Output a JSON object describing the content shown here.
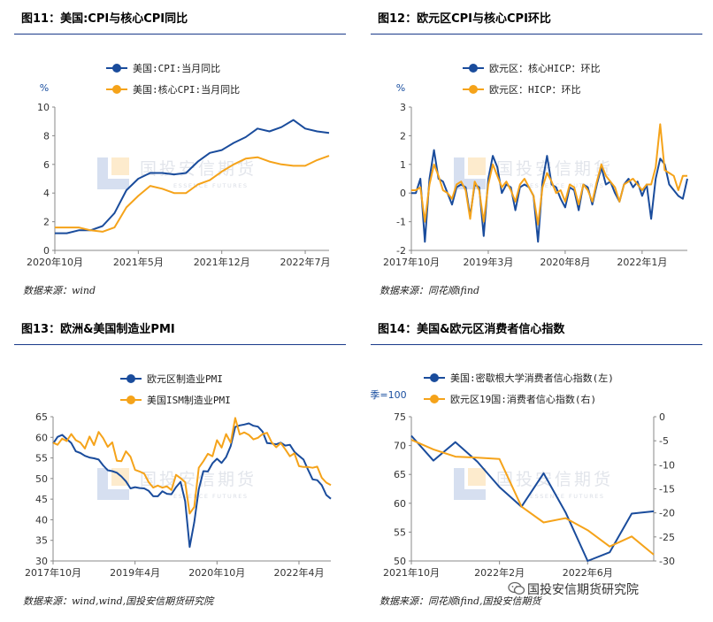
{
  "watermark": {
    "cn": "国投安信期货",
    "en": "ESSENCE FUTURES"
  },
  "wechat_text": "国投安信期货研究院",
  "colors": {
    "blue": "#1a4c9c",
    "orange": "#f5a31a",
    "rule": "#1a3a8a"
  },
  "chart_data": [
    {
      "id": "fig11",
      "type": "line",
      "title": "图11：美国:CPI与核心CPI同比",
      "source": "数据来源：wind",
      "unit": "%",
      "ylim": [
        0,
        10
      ],
      "yticks": [
        "0",
        "2",
        "4",
        "6",
        "8",
        "10"
      ],
      "xticks": [
        "2020年10月",
        "2021年5月",
        "2021年12月",
        "2022年7月"
      ],
      "xtick_index": [
        0,
        7,
        14,
        21
      ],
      "x_count": 24,
      "series": [
        {
          "name": "美国:CPI:当月同比",
          "color": "#1a4c9c",
          "values": [
            1.2,
            1.2,
            1.4,
            1.4,
            1.7,
            2.6,
            4.2,
            5.0,
            5.4,
            5.4,
            5.3,
            5.4,
            6.2,
            6.8,
            7.0,
            7.5,
            7.9,
            8.5,
            8.3,
            8.6,
            9.1,
            8.5,
            8.3,
            8.2
          ]
        },
        {
          "name": "美国:核心CPI:当月同比",
          "color": "#f5a31a",
          "values": [
            1.6,
            1.6,
            1.6,
            1.4,
            1.3,
            1.6,
            3.0,
            3.8,
            4.5,
            4.3,
            4.0,
            4.0,
            4.6,
            4.9,
            5.5,
            6.0,
            6.4,
            6.5,
            6.2,
            6.0,
            5.9,
            5.9,
            6.3,
            6.6
          ]
        }
      ]
    },
    {
      "id": "fig12",
      "type": "line",
      "title": "图12：欧元区CPI与核心CPI环比",
      "source": "数据来源：同花顺ifind",
      "unit": "%",
      "ylim": [
        -2,
        3
      ],
      "yticks": [
        "-2",
        "-1",
        "0",
        "1",
        "2",
        "3"
      ],
      "xticks": [
        "2017年10月",
        "2019年3月",
        "2020年8月",
        "2022年1月"
      ],
      "xtick_index": [
        0,
        17,
        34,
        51
      ],
      "x_count": 62,
      "series": [
        {
          "name": "欧元区：核心HICP：环比",
          "color": "#1a4c9c",
          "values": [
            0.0,
            0.0,
            0.5,
            -1.7,
            0.5,
            1.5,
            0.5,
            0.4,
            0.0,
            -0.4,
            0.2,
            0.3,
            0.2,
            -0.8,
            0.3,
            0.2,
            -1.5,
            0.5,
            1.3,
            0.9,
            0.0,
            0.3,
            0.2,
            -0.6,
            0.2,
            0.3,
            0.2,
            -0.1,
            -1.7,
            0.4,
            1.3,
            0.3,
            0.2,
            -0.2,
            -0.5,
            0.2,
            0.1,
            -0.6,
            0.3,
            0.2,
            -0.4,
            0.3,
            0.9,
            0.3,
            0.4,
            0.0,
            -0.3,
            0.3,
            0.5,
            0.2,
            0.4,
            -0.1,
            0.3,
            -0.9,
            0.5,
            1.2,
            1.0,
            0.3,
            0.1,
            -0.1,
            -0.2,
            0.5
          ]
        },
        {
          "name": "欧元区：HICP：环比",
          "color": "#f5a31a",
          "values": [
            0.1,
            0.1,
            0.2,
            -1.0,
            0.3,
            1.0,
            0.6,
            0.1,
            0.0,
            -0.2,
            0.3,
            0.4,
            0.1,
            -0.9,
            0.4,
            0.1,
            -1.0,
            0.3,
            1.0,
            0.6,
            0.2,
            0.4,
            0.1,
            -0.3,
            0.3,
            0.5,
            0.2,
            -0.1,
            -1.1,
            0.2,
            0.7,
            0.4,
            0.0,
            0.1,
            -0.3,
            0.3,
            0.2,
            -0.4,
            0.3,
            0.1,
            -0.3,
            0.4,
            1.0,
            0.6,
            0.4,
            0.2,
            -0.3,
            0.3,
            0.4,
            0.5,
            0.3,
            0.1,
            0.3,
            0.3,
            0.9,
            2.4,
            0.8,
            0.7,
            0.6,
            0.1,
            0.6,
            0.6
          ]
        }
      ]
    },
    {
      "id": "fig13",
      "type": "line",
      "title": "图13：欧洲&美国制造业PMI",
      "source": "数据来源：wind,wind,国投安信期货研究院",
      "unit": "",
      "ylim": [
        30,
        65
      ],
      "yticks": [
        "30",
        "35",
        "40",
        "45",
        "50",
        "55",
        "60",
        "65"
      ],
      "xticks": [
        "2017年10月",
        "2019年4月",
        "2020年10月",
        "2022年4月"
      ],
      "xtick_index": [
        0,
        18,
        36,
        54
      ],
      "x_count": 62,
      "series": [
        {
          "name": "欧元区制造业PMI",
          "color": "#1a4c9c",
          "values": [
            58.5,
            60.1,
            60.6,
            59.6,
            58.6,
            56.6,
            56.2,
            55.5,
            55.1,
            54.9,
            54.6,
            53.2,
            52.0,
            51.8,
            51.4,
            50.5,
            49.3,
            47.6,
            47.9,
            47.7,
            47.6,
            47.0,
            45.7,
            45.7,
            46.9,
            46.3,
            46.2,
            47.9,
            49.2,
            44.5,
            33.4,
            39.4,
            47.4,
            51.8,
            51.7,
            53.7,
            54.8,
            53.8,
            55.2,
            57.9,
            62.5,
            62.9,
            63.1,
            63.4,
            62.8,
            62.6,
            61.4,
            58.6,
            58.5,
            58.3,
            58.7,
            58.0,
            58.2,
            56.5,
            55.5,
            54.6,
            52.1,
            49.8,
            49.6,
            48.4,
            46.0,
            45.1
          ]
        },
        {
          "name": "美国ISM制造业PMI",
          "color": "#f5a31a",
          "values": [
            58.7,
            58.2,
            59.7,
            59.1,
            60.8,
            59.3,
            58.7,
            57.3,
            60.2,
            58.1,
            61.3,
            59.8,
            57.7,
            58.8,
            54.3,
            54.2,
            56.6,
            55.3,
            52.1,
            51.7,
            51.2,
            49.1,
            47.8,
            48.3,
            47.8,
            48.1,
            47.2,
            50.9,
            50.1,
            49.1,
            41.5,
            43.1,
            52.6,
            54.2,
            56.0,
            55.4,
            59.3,
            57.5,
            60.8,
            58.7,
            64.7,
            60.7,
            61.2,
            60.6,
            59.5,
            59.9,
            60.8,
            61.1,
            58.8,
            57.6,
            58.6,
            57.1,
            55.4,
            56.1,
            53.0,
            52.8,
            52.8,
            52.6,
            52.9,
            50.2,
            49.0,
            48.4
          ]
        }
      ]
    },
    {
      "id": "fig14",
      "type": "line",
      "title": "图14：美国&欧元区消费者信心指数",
      "source": "数据来源：同花顺ifind,国投安信期货",
      "unit": "季=100",
      "ylim": [
        50,
        75
      ],
      "yticks": [
        "50",
        "55",
        "60",
        "65",
        "70",
        "75"
      ],
      "y2lim": [
        -30,
        0
      ],
      "y2ticks": [
        "-30",
        "-25",
        "-20",
        "-15",
        "-10",
        "-5",
        "0"
      ],
      "xticks": [
        "2021年10月",
        "2022年2月",
        "2022年6月"
      ],
      "xtick_index": [
        0,
        4,
        8
      ],
      "x_count": 12,
      "series": [
        {
          "name": "美国:密歇根大学消费者信心指数(左)",
          "color": "#1a4c9c",
          "axis": "left",
          "values": [
            71.7,
            67.4,
            70.6,
            67.2,
            62.8,
            59.4,
            65.2,
            58.4,
            50.0,
            51.5,
            58.2,
            58.6
          ]
        },
        {
          "name": "欧元区19国:消费者信心指数(右)",
          "color": "#f5a31a",
          "axis": "right",
          "values": [
            -4.8,
            -6.8,
            -8.3,
            -8.5,
            -8.8,
            -18.7,
            -22.0,
            -21.1,
            -23.6,
            -27.0,
            -24.9,
            -28.7
          ]
        }
      ]
    }
  ]
}
